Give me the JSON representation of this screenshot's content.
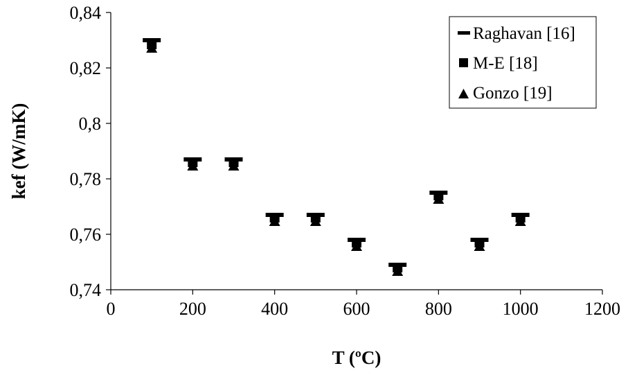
{
  "chart_data": {
    "type": "scatter",
    "title": "",
    "xlabel": "T (ºC)",
    "ylabel": "kef (W/mK)",
    "xlim": [
      0,
      1200
    ],
    "ylim": [
      0.74,
      0.84
    ],
    "x_ticks": [
      "0",
      "200",
      "400",
      "600",
      "800",
      "1000",
      "1200"
    ],
    "y_ticks": [
      "0,74",
      "0,76",
      "0,78",
      "0,8",
      "0,82",
      "0,84"
    ],
    "grid": false,
    "legend_position": "top-right",
    "x": [
      100,
      200,
      300,
      400,
      500,
      600,
      700,
      800,
      900,
      1000
    ],
    "series": [
      {
        "name": "Raghavan [16]",
        "marker": "dash",
        "values": [
          0.83,
          0.787,
          0.787,
          0.767,
          0.767,
          0.758,
          0.749,
          0.775,
          0.758,
          0.767
        ]
      },
      {
        "name": "M-E [18]",
        "marker": "square",
        "values": [
          0.8285,
          0.786,
          0.786,
          0.766,
          0.766,
          0.757,
          0.748,
          0.774,
          0.757,
          0.766
        ]
      },
      {
        "name": "Gonzo [19]",
        "marker": "triangle",
        "values": [
          0.827,
          0.7845,
          0.7845,
          0.7645,
          0.7645,
          0.7555,
          0.7465,
          0.7725,
          0.7555,
          0.7645
        ]
      }
    ]
  }
}
